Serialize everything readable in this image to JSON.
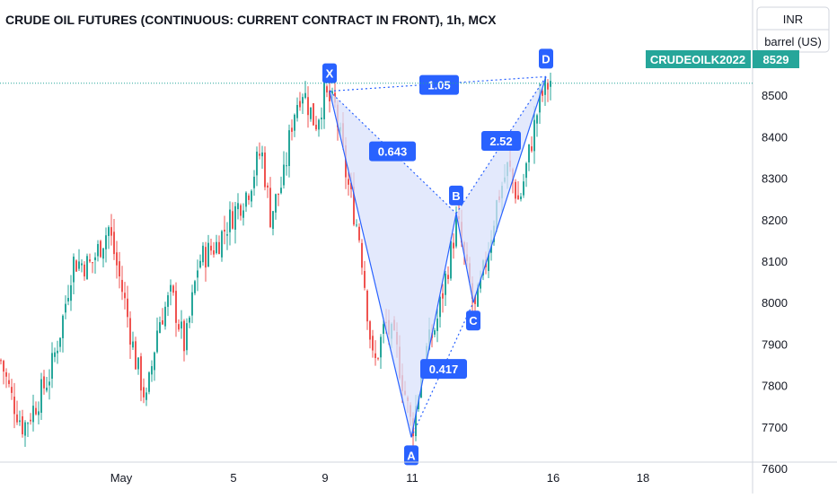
{
  "chart_data": {
    "type": "candlestick",
    "title": "CRUDE OIL FUTURES (CONTINUOUS: CURRENT CONTRACT IN FRONT), 1h, MCX",
    "currency": "INR",
    "unit": "barrel (US)",
    "symbol_badge": "CRUDEOILK2022",
    "last_price_label": "8529",
    "last_price": 8529,
    "ylim": [
      7570,
      8620
    ],
    "yticks": [
      7600,
      7700,
      7800,
      7900,
      8000,
      8100,
      8200,
      8300,
      8400,
      8500
    ],
    "xlim": [
      -50,
      930
    ],
    "xticks": [
      {
        "x": 135,
        "label": "May"
      },
      {
        "x": 260,
        "label": "5"
      },
      {
        "x": 362,
        "label": "9"
      },
      {
        "x": 459,
        "label": "11"
      },
      {
        "x": 616,
        "label": "16"
      },
      {
        "x": 716,
        "label": "18"
      }
    ],
    "colors": {
      "up": "#26a69a",
      "down": "#ef5350",
      "pattern_line": "#2962ff",
      "pattern_fill": "#d9e1fb",
      "label_bg": "#2962ff",
      "badge": "#26a69a"
    },
    "harmonic_pattern": {
      "points": [
        {
          "label": "X",
          "x": 367,
          "price": 8510
        },
        {
          "label": "A",
          "x": 458,
          "price": 7675
        },
        {
          "label": "B",
          "x": 508,
          "price": 8215
        },
        {
          "label": "C",
          "x": 527,
          "price": 8000
        },
        {
          "label": "D",
          "x": 608,
          "price": 8545
        }
      ],
      "ratios": [
        {
          "label": "0.643",
          "x": 437,
          "price": 8365
        },
        {
          "label": "1.05",
          "x": 489,
          "price": 8525
        },
        {
          "label": "0.417",
          "x": 494,
          "price": 7840
        },
        {
          "label": "2.52",
          "x": 558,
          "price": 8390
        }
      ]
    },
    "anchors": [
      {
        "x": 0,
        "price": 7860
      },
      {
        "x": 12,
        "price": 7770
      },
      {
        "x": 25,
        "price": 7700
      },
      {
        "x": 40,
        "price": 7760
      },
      {
        "x": 55,
        "price": 7830
      },
      {
        "x": 68,
        "price": 7950
      },
      {
        "x": 80,
        "price": 8100
      },
      {
        "x": 100,
        "price": 8090
      },
      {
        "x": 120,
        "price": 8180
      },
      {
        "x": 132,
        "price": 8060
      },
      {
        "x": 138,
        "price": 8000
      },
      {
        "x": 150,
        "price": 7860
      },
      {
        "x": 162,
        "price": 7760
      },
      {
        "x": 175,
        "price": 7950
      },
      {
        "x": 190,
        "price": 8020
      },
      {
        "x": 205,
        "price": 7890
      },
      {
        "x": 220,
        "price": 8100
      },
      {
        "x": 240,
        "price": 8140
      },
      {
        "x": 260,
        "price": 8220
      },
      {
        "x": 275,
        "price": 8270
      },
      {
        "x": 290,
        "price": 8370
      },
      {
        "x": 300,
        "price": 8210
      },
      {
        "x": 315,
        "price": 8300
      },
      {
        "x": 325,
        "price": 8450
      },
      {
        "x": 335,
        "price": 8520
      },
      {
        "x": 350,
        "price": 8430
      },
      {
        "x": 360,
        "price": 8500
      },
      {
        "x": 372,
        "price": 8470
      },
      {
        "x": 385,
        "price": 8300
      },
      {
        "x": 400,
        "price": 8150
      },
      {
        "x": 415,
        "price": 7840
      },
      {
        "x": 428,
        "price": 7950
      },
      {
        "x": 440,
        "price": 7890
      },
      {
        "x": 450,
        "price": 7780
      },
      {
        "x": 458,
        "price": 7690
      },
      {
        "x": 470,
        "price": 7860
      },
      {
        "x": 485,
        "price": 7950
      },
      {
        "x": 498,
        "price": 8090
      },
      {
        "x": 508,
        "price": 8200
      },
      {
        "x": 518,
        "price": 8080
      },
      {
        "x": 528,
        "price": 7980
      },
      {
        "x": 540,
        "price": 8100
      },
      {
        "x": 553,
        "price": 8250
      },
      {
        "x": 565,
        "price": 8330
      },
      {
        "x": 577,
        "price": 8240
      },
      {
        "x": 590,
        "price": 8380
      },
      {
        "x": 600,
        "price": 8490
      },
      {
        "x": 613,
        "price": 8540
      }
    ]
  },
  "ui": {
    "currency_label": "INR",
    "unit_label": "barrel (US)"
  }
}
